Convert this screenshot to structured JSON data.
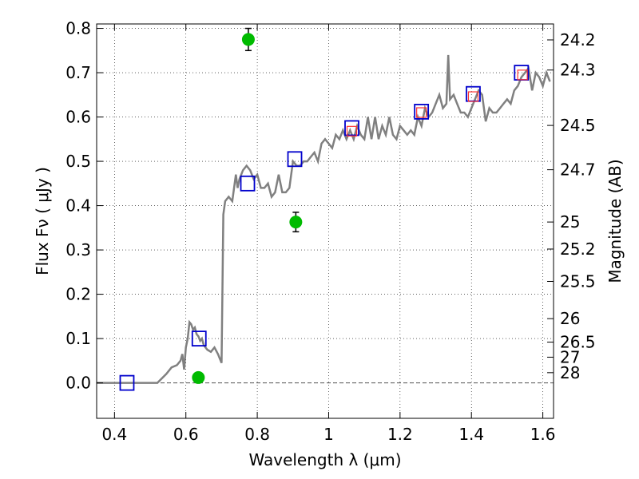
{
  "chart_data": {
    "type": "line",
    "xlabel": "Wavelength  λ (μm)",
    "ylabel": "Flux  Fν  ( μJy )",
    "ylabel_right": "Magnitude (AB)",
    "xlim": [
      0.35,
      1.63
    ],
    "ylim": [
      -0.08,
      0.81
    ],
    "grid": true,
    "x_ticks": [
      0.4,
      0.6,
      0.8,
      1.0,
      1.2,
      1.4,
      1.6
    ],
    "x_tick_labels": [
      "0.4",
      "0.6",
      "0.8",
      "1",
      "1.2",
      "1.4",
      "1.6"
    ],
    "y_ticks": [
      0.0,
      0.1,
      0.2,
      0.3,
      0.4,
      0.5,
      0.6,
      0.7,
      0.8
    ],
    "y_tick_labels": [
      "0.0",
      "0.1",
      "0.2",
      "0.3",
      "0.4",
      "0.5",
      "0.6",
      "0.7",
      "0.8"
    ],
    "right_ticks": [
      {
        "flux": 0.774,
        "label": "24.2"
      },
      {
        "flux": 0.706,
        "label": "24.3"
      },
      {
        "flux": 0.581,
        "label": "24.5"
      },
      {
        "flux": 0.481,
        "label": "24.7"
      },
      {
        "flux": 0.363,
        "label": "25"
      },
      {
        "flux": 0.302,
        "label": "25.2"
      },
      {
        "flux": 0.229,
        "label": "25.5"
      },
      {
        "flux": 0.145,
        "label": "26"
      },
      {
        "flux": 0.092,
        "label": "26.5"
      },
      {
        "flux": 0.058,
        "label": "27"
      },
      {
        "flux": 0.023,
        "label": "28"
      }
    ],
    "spectrum": {
      "color": "#808080",
      "x": [
        0.35,
        0.52,
        0.545,
        0.56,
        0.575,
        0.585,
        0.59,
        0.595,
        0.6,
        0.605,
        0.61,
        0.615,
        0.62,
        0.625,
        0.63,
        0.635,
        0.64,
        0.645,
        0.65,
        0.66,
        0.67,
        0.68,
        0.69,
        0.7,
        0.705,
        0.71,
        0.72,
        0.73,
        0.74,
        0.745,
        0.75,
        0.76,
        0.77,
        0.78,
        0.79,
        0.8,
        0.81,
        0.82,
        0.83,
        0.84,
        0.85,
        0.86,
        0.87,
        0.88,
        0.89,
        0.9,
        0.91,
        0.92,
        0.93,
        0.94,
        0.95,
        0.96,
        0.97,
        0.98,
        0.99,
        1.0,
        1.01,
        1.02,
        1.03,
        1.04,
        1.05,
        1.06,
        1.07,
        1.08,
        1.09,
        1.1,
        1.11,
        1.12,
        1.13,
        1.14,
        1.15,
        1.16,
        1.17,
        1.18,
        1.19,
        1.2,
        1.21,
        1.22,
        1.23,
        1.24,
        1.25,
        1.26,
        1.27,
        1.28,
        1.29,
        1.3,
        1.31,
        1.32,
        1.33,
        1.335,
        1.34,
        1.35,
        1.36,
        1.37,
        1.38,
        1.39,
        1.4,
        1.41,
        1.42,
        1.43,
        1.44,
        1.45,
        1.46,
        1.47,
        1.48,
        1.49,
        1.5,
        1.51,
        1.52,
        1.53,
        1.54,
        1.55,
        1.56,
        1.57,
        1.58,
        1.59,
        1.6,
        1.61,
        1.62
      ],
      "y": [
        0.0,
        0.0,
        0.02,
        0.035,
        0.04,
        0.05,
        0.065,
        0.03,
        0.08,
        0.1,
        0.137,
        0.132,
        0.12,
        0.125,
        0.11,
        0.105,
        0.095,
        0.1,
        0.085,
        0.075,
        0.07,
        0.08,
        0.065,
        0.045,
        0.38,
        0.41,
        0.42,
        0.41,
        0.47,
        0.44,
        0.46,
        0.48,
        0.49,
        0.48,
        0.46,
        0.47,
        0.44,
        0.44,
        0.45,
        0.42,
        0.43,
        0.47,
        0.43,
        0.43,
        0.44,
        0.5,
        0.49,
        0.49,
        0.5,
        0.5,
        0.51,
        0.52,
        0.5,
        0.54,
        0.55,
        0.54,
        0.53,
        0.56,
        0.55,
        0.57,
        0.55,
        0.57,
        0.55,
        0.58,
        0.56,
        0.55,
        0.6,
        0.55,
        0.6,
        0.55,
        0.58,
        0.56,
        0.6,
        0.56,
        0.55,
        0.58,
        0.57,
        0.56,
        0.57,
        0.56,
        0.6,
        0.58,
        0.62,
        0.6,
        0.61,
        0.63,
        0.65,
        0.62,
        0.63,
        0.74,
        0.64,
        0.65,
        0.63,
        0.61,
        0.61,
        0.6,
        0.62,
        0.64,
        0.66,
        0.65,
        0.59,
        0.62,
        0.61,
        0.61,
        0.62,
        0.63,
        0.64,
        0.63,
        0.66,
        0.67,
        0.69,
        0.7,
        0.71,
        0.66,
        0.7,
        0.69,
        0.67,
        0.7,
        0.68
      ]
    },
    "photometry": {
      "color": "#00bb00",
      "points": [
        {
          "x": 0.635,
          "y": 0.012,
          "err": 0.01
        },
        {
          "x": 0.775,
          "y": 0.775,
          "err": 0.025
        },
        {
          "x": 0.908,
          "y": 0.363,
          "err": 0.022
        }
      ]
    },
    "model_blue_squares": {
      "color": "#0000cc",
      "points": [
        {
          "x": 0.435,
          "y": 0.0
        },
        {
          "x": 0.637,
          "y": 0.1
        },
        {
          "x": 0.773,
          "y": 0.45
        },
        {
          "x": 0.905,
          "y": 0.505
        },
        {
          "x": 1.065,
          "y": 0.575
        },
        {
          "x": 1.26,
          "y": 0.612
        },
        {
          "x": 1.405,
          "y": 0.652
        },
        {
          "x": 1.54,
          "y": 0.7
        }
      ]
    },
    "model_red_squares": {
      "color": "#ff3333",
      "points": [
        {
          "x": 1.065,
          "y": 0.568
        },
        {
          "x": 1.26,
          "y": 0.61
        },
        {
          "x": 1.405,
          "y": 0.646
        },
        {
          "x": 1.543,
          "y": 0.695
        }
      ]
    },
    "zero_line": {
      "y": 0.0,
      "color": "#555555"
    }
  }
}
